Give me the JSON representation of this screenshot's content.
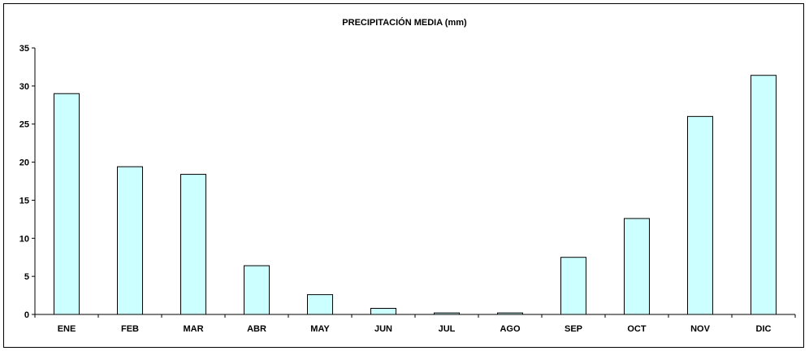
{
  "chart_data": {
    "type": "bar",
    "title": "PRECIPITACIÓN MEDIA (mm)",
    "xlabel": "",
    "ylabel": "",
    "categories": [
      "ENE",
      "FEB",
      "MAR",
      "ABR",
      "MAY",
      "JUN",
      "JUL",
      "AGO",
      "SEP",
      "OCT",
      "NOV",
      "DIC"
    ],
    "values": [
      29.0,
      19.4,
      18.4,
      6.4,
      2.6,
      0.8,
      0.2,
      0.2,
      7.5,
      12.6,
      26.0,
      31.4
    ],
    "ylim": [
      0,
      35
    ],
    "yticks": [
      0,
      5,
      10,
      15,
      20,
      25,
      30,
      35
    ],
    "grid": false,
    "legend": "none",
    "bar_color": "#ccffff",
    "bar_edge_color": "#000000"
  }
}
